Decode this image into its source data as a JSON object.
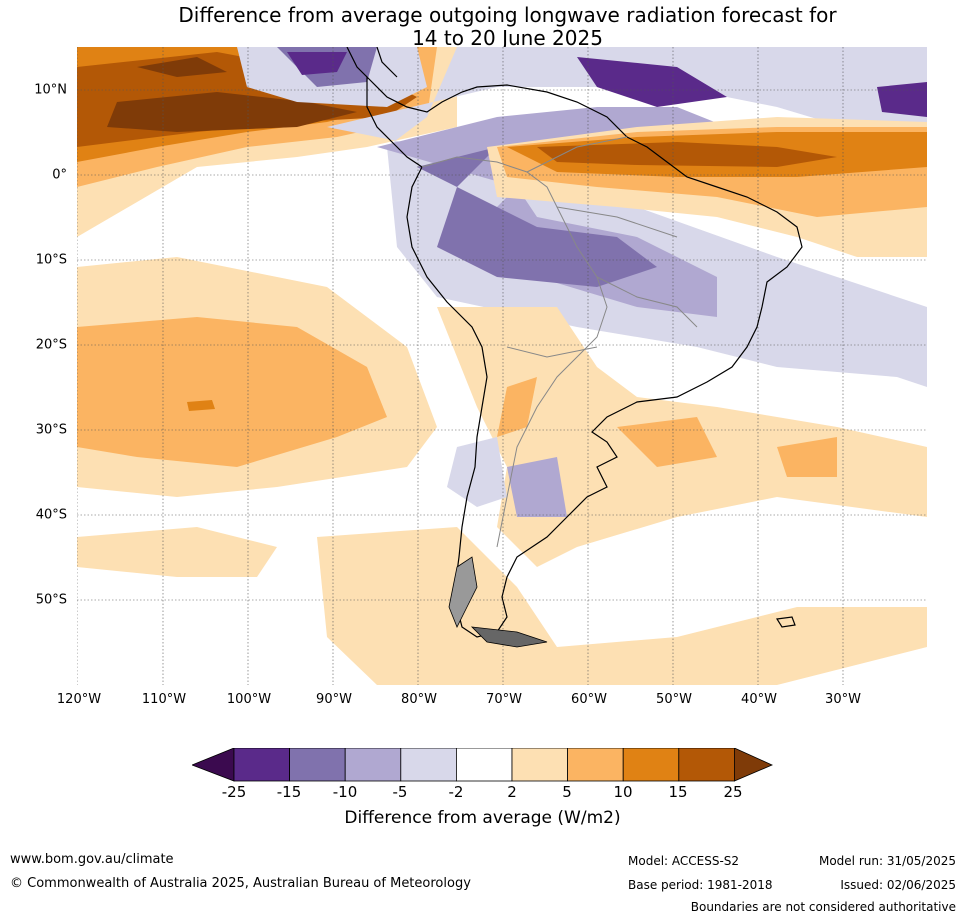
{
  "title": {
    "line1": "Difference from average outgoing longwave radiation forecast for",
    "line2": "14 to 20 June 2025"
  },
  "axes": {
    "lat_labels": [
      "10°N",
      "0°",
      "10°S",
      "20°S",
      "30°S",
      "40°S",
      "50°S"
    ],
    "lon_labels": [
      "120°W",
      "110°W",
      "100°W",
      "90°W",
      "80°W",
      "70°W",
      "60°W",
      "50°W",
      "40°W",
      "30°W"
    ]
  },
  "legend": {
    "title": "Difference from average (W/m2)",
    "ticks": [
      "-25",
      "-15",
      "-10",
      "-5",
      "-2",
      "2",
      "5",
      "10",
      "15",
      "25"
    ],
    "colors": [
      "#3b0a4f",
      "#5a2a8a",
      "#8072ad",
      "#b0a8d1",
      "#d8d8ea",
      "#ffffff",
      "#fde0b3",
      "#fbb462",
      "#e08214",
      "#b35806",
      "#7f3b08"
    ]
  },
  "footer": {
    "website": "www.bom.gov.au/climate",
    "copyright": "© Commonwealth of Australia 2025, Australian Bureau of Meteorology",
    "model": "Model: ACCESS-S2",
    "base_period": "Base period: 1981-2018",
    "model_run": "Model run: 31/05/2025",
    "issued": "Issued: 02/06/2025",
    "disclaimer": "Boundaries are not considered authoritative"
  }
}
